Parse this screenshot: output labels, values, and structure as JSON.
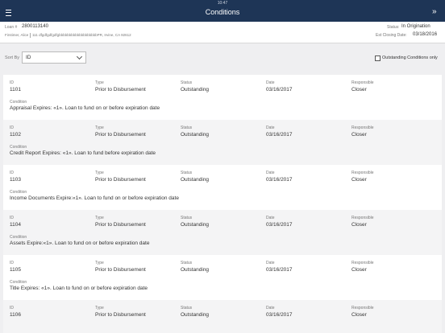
{
  "status_bar": {
    "time": "10:47"
  },
  "header": {
    "title": "Conditions"
  },
  "loan": {
    "label": "Loan #",
    "number": "2800113140",
    "borrower": "Firstimer, Alice",
    "address": "111 dfgdfgdfgdfgbbbbbbbbbbbbbbbbbbbPR, Irvine, CA 92612",
    "status_label": "Status:",
    "status": "In Origination",
    "closing_label": "Est Closing Date:",
    "closing_date": "03/18/2016"
  },
  "controls": {
    "sort_label": "Sort By",
    "sort_value": "ID",
    "filter_label": "Outstanding Conditions only"
  },
  "field_labels": {
    "id": "ID",
    "type": "Type",
    "status": "Status",
    "date": "Date",
    "responsible": "Responsible",
    "condition": "Condition"
  },
  "conditions": [
    {
      "id": "1101",
      "type": "Prior to Disbursement",
      "status": "Outstanding",
      "date": "03/16/2017",
      "responsible": "Closer",
      "condition": "Appraisal Expires: «1».  Loan to fund on or before expiration date"
    },
    {
      "id": "1102",
      "type": "Prior to Disbursement",
      "status": "Outstanding",
      "date": "03/16/2017",
      "responsible": "Closer",
      "condition": "Credit Report Expires: «1».  Loan to fund before expiration date"
    },
    {
      "id": "1103",
      "type": "Prior to Disbursement",
      "status": "Outstanding",
      "date": "03/16/2017",
      "responsible": "Closer",
      "condition": "Income Documents Expire:«1».  Loan to fund on or before expiration date"
    },
    {
      "id": "1104",
      "type": "Prior to Disbursement",
      "status": "Outstanding",
      "date": "03/16/2017",
      "responsible": "Closer",
      "condition": "Assets Expire:«1».  Loan to fund on or before expiration date"
    },
    {
      "id": "1105",
      "type": "Prior to Disbursement",
      "status": "Outstanding",
      "date": "03/16/2017",
      "responsible": "Closer",
      "condition": "Title Expires: «1».  Loan to fund on or before expiration date"
    },
    {
      "id": "1106",
      "type": "Prior to Disbursement",
      "status": "Outstanding",
      "date": "03/16/2017",
      "responsible": "Closer"
    }
  ]
}
